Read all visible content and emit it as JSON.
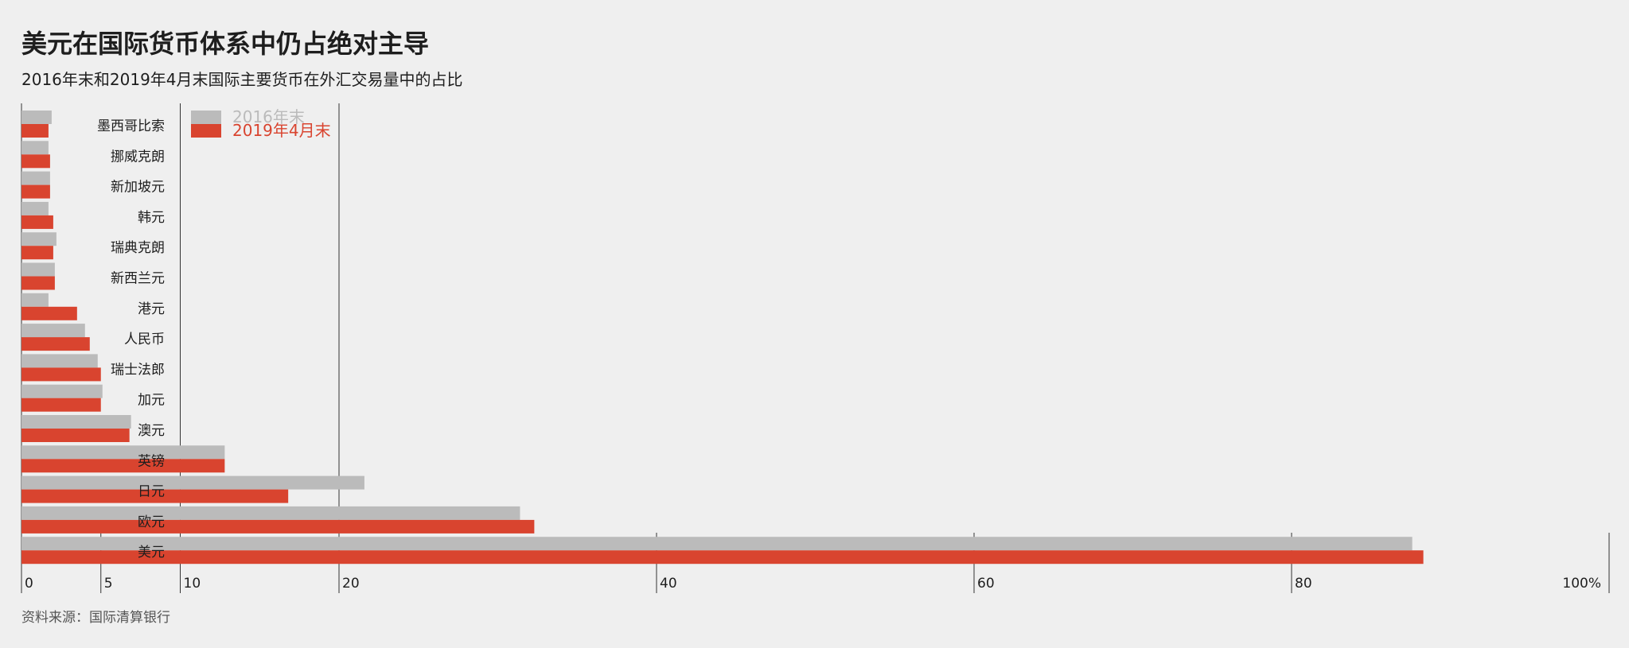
{
  "header": {
    "title": "美元在国际货币体系中仍占绝对主导",
    "subtitle": "2016年末和2019年4月末国际主要货币在外汇交易量中的占比"
  },
  "footer": {
    "source": "资料来源：国际清算银行"
  },
  "colors": {
    "series_2016": "#bbbbbb",
    "series_2019": "#d9442f",
    "axis": "#333333",
    "background": "#efefef"
  },
  "chart_data": {
    "type": "bar",
    "orientation": "horizontal",
    "categories": [
      "墨西哥比索",
      "挪威克朗",
      "新加坡元",
      "韩元",
      "瑞典克朗",
      "新西兰元",
      "港元",
      "人民币",
      "瑞士法郎",
      "加元",
      "澳元",
      "英镑",
      "日元",
      "欧元",
      "美元"
    ],
    "series": [
      {
        "name": "2016年末",
        "color": "#bbbbbb",
        "values": [
          1.9,
          1.7,
          1.8,
          1.7,
          2.2,
          2.1,
          1.7,
          4.0,
          4.8,
          5.1,
          6.9,
          12.8,
          21.6,
          31.4,
          87.6
        ]
      },
      {
        "name": "2019年4月末",
        "color": "#d9442f",
        "values": [
          1.7,
          1.8,
          1.8,
          2.0,
          2.0,
          2.1,
          3.5,
          4.3,
          5.0,
          5.0,
          6.8,
          12.8,
          16.8,
          32.3,
          88.3
        ]
      }
    ],
    "xlim": [
      0,
      100
    ],
    "xticks": [
      "0",
      "5",
      "10",
      "20",
      "40",
      "60",
      "80",
      "100%"
    ],
    "xtick_values": [
      0,
      5,
      10,
      20,
      40,
      60,
      80,
      100
    ],
    "legend": {
      "position": "top-left",
      "entries": [
        "2016年末",
        "2019年4月末"
      ]
    },
    "xlabel": "",
    "ylabel": ""
  }
}
